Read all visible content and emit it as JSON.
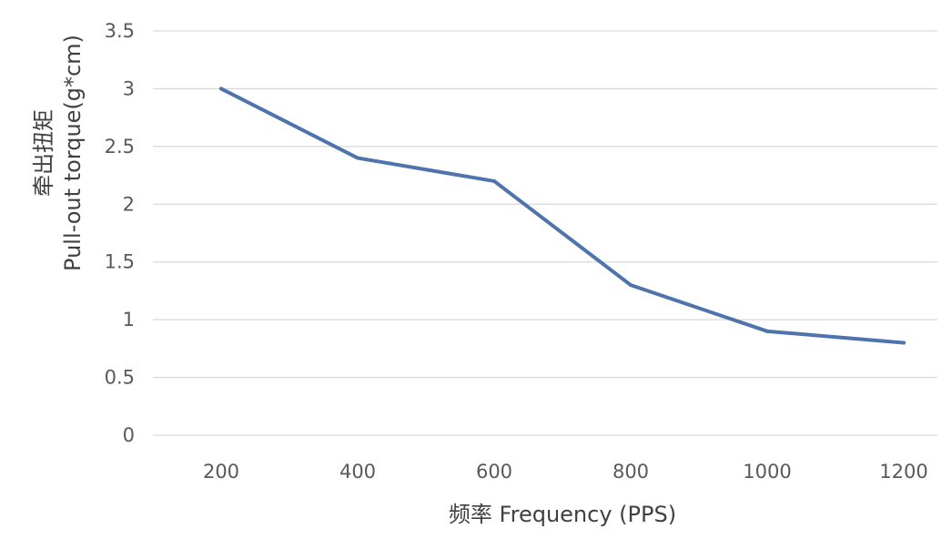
{
  "chart_data": {
    "type": "line",
    "x": [
      200,
      400,
      600,
      800,
      1000,
      1200
    ],
    "categories": [
      "200",
      "400",
      "600",
      "800",
      "1000",
      "1200"
    ],
    "series": [
      {
        "values": [
          3.0,
          2.4,
          2.2,
          1.3,
          0.9,
          0.8
        ]
      }
    ],
    "xlabel": "频率 Frequency (PPS)",
    "ylabel_line1": "牵出扭矩",
    "ylabel_line2": "Pull-out torque(g*cm)",
    "ylim": [
      0,
      3.5
    ],
    "yticks": [
      "0",
      "0.5",
      "1",
      "1.5",
      "2",
      "2.5",
      "3",
      "3.5"
    ],
    "grid": true,
    "legend": "none",
    "colors": {
      "series": "#4f73ad",
      "grid": "#d9d9d9",
      "text": "#595959"
    }
  }
}
